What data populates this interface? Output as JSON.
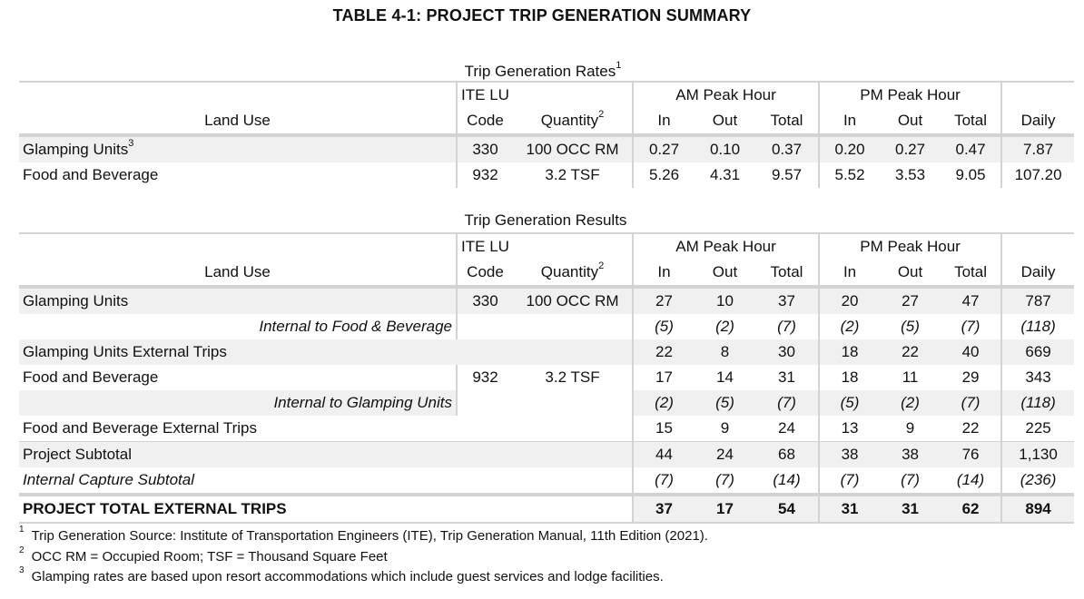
{
  "title": "TABLE 4-1: PROJECT TRIP GENERATION SUMMARY",
  "rates": {
    "section_title": "Trip Generation Rates",
    "section_sup": "1",
    "header": {
      "land_use": "Land Use",
      "ite_lu_line1": "ITE LU",
      "ite_lu_line2": "Code",
      "quantity": "Quantity",
      "quantity_sup": "2",
      "am": "AM Peak Hour",
      "pm": "PM Peak Hour",
      "in": "In",
      "out": "Out",
      "total": "Total",
      "daily": "Daily"
    },
    "rows": [
      {
        "land_use": "Glamping Units",
        "sup": "3",
        "code": "330",
        "quantity": "100 OCC RM",
        "am_in": "0.27",
        "am_out": "0.10",
        "am_total": "0.37",
        "pm_in": "0.20",
        "pm_out": "0.27",
        "pm_total": "0.47",
        "daily": "7.87"
      },
      {
        "land_use": "Food and Beverage",
        "sup": "",
        "code": "932",
        "quantity": "3.2 TSF",
        "am_in": "5.26",
        "am_out": "4.31",
        "am_total": "9.57",
        "pm_in": "5.52",
        "pm_out": "3.53",
        "pm_total": "9.05",
        "daily": "107.20"
      }
    ]
  },
  "results": {
    "section_title": "Trip Generation Results",
    "header": {
      "land_use": "Land Use",
      "ite_lu_line1": "ITE LU",
      "ite_lu_line2": "Code",
      "quantity": "Quantity",
      "quantity_sup": "2",
      "am": "AM Peak Hour",
      "pm": "PM Peak Hour",
      "in": "In",
      "out": "Out",
      "total": "Total",
      "daily": "Daily"
    },
    "rows": [
      {
        "land_use": "Glamping Units",
        "code": "330",
        "quantity": "100 OCC RM",
        "am_in": "27",
        "am_out": "10",
        "am_total": "37",
        "pm_in": "20",
        "pm_out": "27",
        "pm_total": "47",
        "daily": "787"
      },
      {
        "land_use": "Internal to Food & Beverage",
        "am_in": "(5)",
        "am_out": "(2)",
        "am_total": "(7)",
        "pm_in": "(2)",
        "pm_out": "(5)",
        "pm_total": "(7)",
        "daily": "(118)"
      },
      {
        "land_use": "Glamping Units External Trips",
        "am_in": "22",
        "am_out": "8",
        "am_total": "30",
        "pm_in": "18",
        "pm_out": "22",
        "pm_total": "40",
        "daily": "669"
      },
      {
        "land_use": "Food and Beverage",
        "code": "932",
        "quantity": "3.2 TSF",
        "am_in": "17",
        "am_out": "14",
        "am_total": "31",
        "pm_in": "18",
        "pm_out": "11",
        "pm_total": "29",
        "daily": "343"
      },
      {
        "land_use": "Internal to Glamping Units",
        "am_in": "(2)",
        "am_out": "(5)",
        "am_total": "(7)",
        "pm_in": "(5)",
        "pm_out": "(2)",
        "pm_total": "(7)",
        "daily": "(118)"
      },
      {
        "land_use": "Food and Beverage External Trips",
        "am_in": "15",
        "am_out": "9",
        "am_total": "24",
        "pm_in": "13",
        "pm_out": "9",
        "pm_total": "22",
        "daily": "225"
      },
      {
        "land_use": "Project Subtotal",
        "am_in": "44",
        "am_out": "24",
        "am_total": "68",
        "pm_in": "38",
        "pm_out": "38",
        "pm_total": "76",
        "daily": "1,130"
      },
      {
        "land_use": "Internal Capture Subtotal",
        "am_in": "(7)",
        "am_out": "(7)",
        "am_total": "(14)",
        "pm_in": "(7)",
        "pm_out": "(7)",
        "pm_total": "(14)",
        "daily": "(236)"
      }
    ],
    "total": {
      "land_use": "PROJECT TOTAL EXTERNAL TRIPS",
      "am_in": "37",
      "am_out": "17",
      "am_total": "54",
      "pm_in": "31",
      "pm_out": "31",
      "pm_total": "62",
      "daily": "894"
    }
  },
  "footnotes": [
    {
      "mark": "1",
      "text": "Trip Generation Source:  Institute of Transportation Engineers (ITE), Trip Generation Manual, 11th Edition (2021)."
    },
    {
      "mark": "2",
      "text": "OCC RM = Occupied Room;  TSF = Thousand Square Feet"
    },
    {
      "mark": "3",
      "text": "Glamping rates are based upon resort accommodations  which include guest services and lodge facilities."
    }
  ]
}
